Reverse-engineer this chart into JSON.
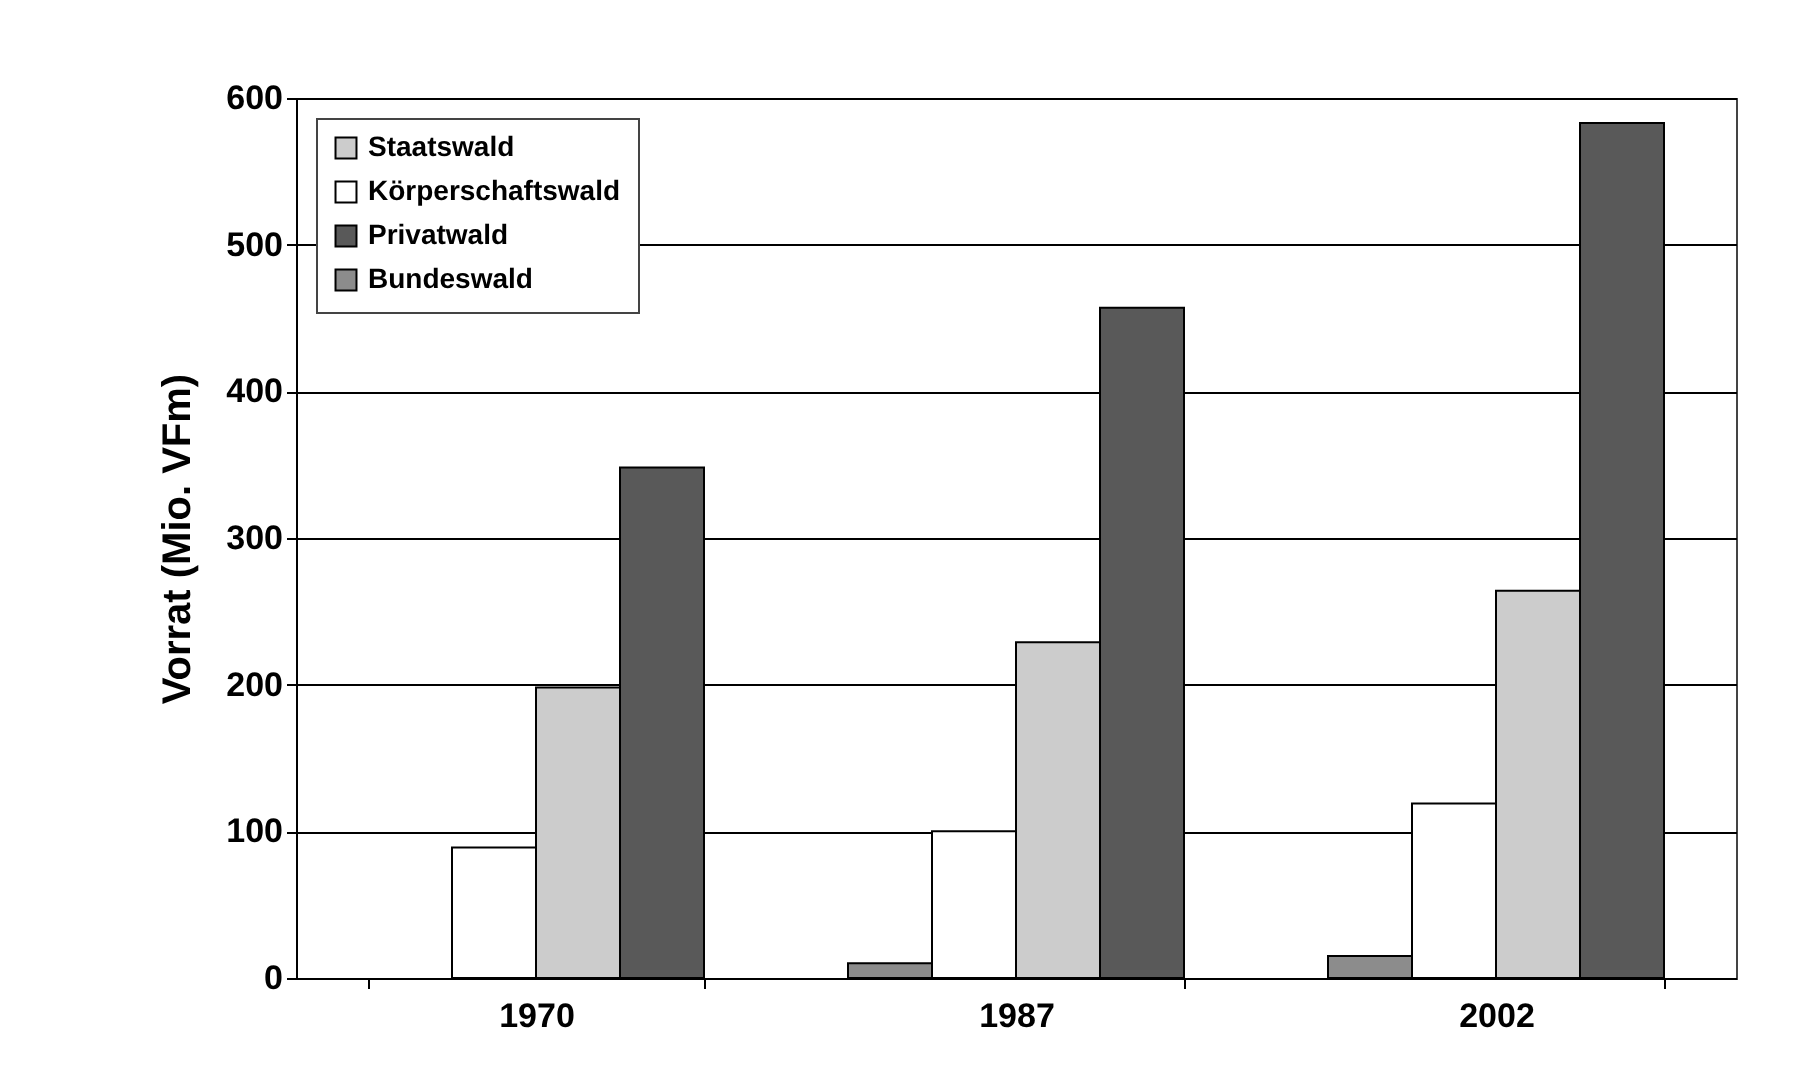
{
  "chart_data": {
    "type": "bar",
    "ylabel": "Vorrat (Mio. VFm)",
    "categories": [
      "1970",
      "1987",
      "2002"
    ],
    "series": [
      {
        "name": "Bundeswald",
        "color": "#8c8c8c",
        "values": [
          null,
          10,
          15
        ]
      },
      {
        "name": "Körperschaftswald",
        "color": "#ffffff",
        "values": [
          89,
          100,
          119
        ]
      },
      {
        "name": "Staatswald",
        "color": "#cccccc",
        "values": [
          198,
          229,
          264
        ]
      },
      {
        "name": "Privatwald",
        "color": "#595959",
        "values": [
          348,
          457,
          583
        ]
      }
    ],
    "ylim": [
      0,
      600
    ],
    "yticks": [
      0,
      100,
      200,
      300,
      400,
      500,
      600
    ],
    "grid": "y",
    "legend": "top left"
  }
}
